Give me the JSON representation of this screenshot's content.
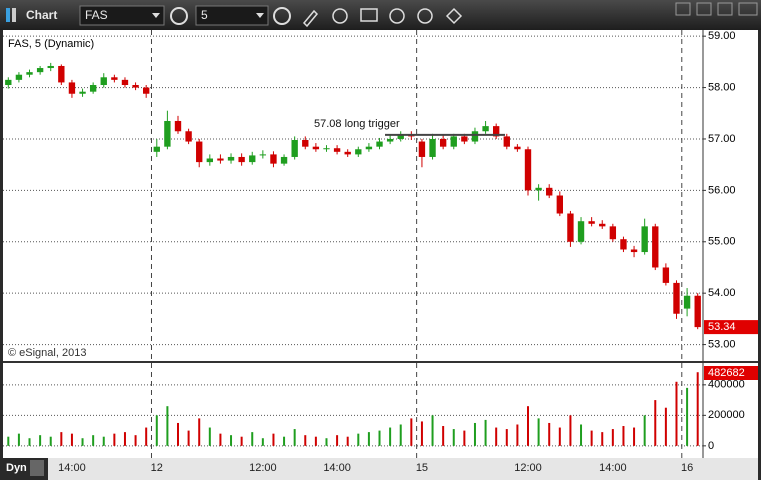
{
  "toolbar": {
    "title": "Chart",
    "symbol": "FAS",
    "interval": "5"
  },
  "footer": {
    "mode": "Dyn"
  },
  "chart_data": [
    {
      "type": "candlestick",
      "title": "FAS, 5 (Dynamic)",
      "source": "© eSignal, 2013",
      "annotation": {
        "text": "57.08 long trigger",
        "value": 57.08
      },
      "categories": [
        null,
        null,
        null,
        null,
        null,
        null,
        "14:00",
        null,
        null,
        null,
        null,
        null,
        null,
        null,
        "12",
        null,
        null,
        null,
        null,
        null,
        null,
        null,
        null,
        null,
        "12:00",
        null,
        null,
        null,
        null,
        null,
        null,
        "14:00",
        null,
        null,
        null,
        null,
        null,
        null,
        null,
        "15",
        null,
        null,
        null,
        null,
        null,
        null,
        null,
        null,
        null,
        "12:00",
        null,
        null,
        null,
        null,
        null,
        null,
        null,
        "14:00",
        null,
        null,
        null,
        null,
        null,
        null,
        "16",
        null
      ],
      "open": [
        58.05,
        58.15,
        58.25,
        58.3,
        58.38,
        58.42,
        58.1,
        57.88,
        57.92,
        58.05,
        58.2,
        58.15,
        58.05,
        58.0,
        56.75,
        56.85,
        57.35,
        57.15,
        56.95,
        56.55,
        56.62,
        56.58,
        56.65,
        56.55,
        56.68,
        56.7,
        56.52,
        56.65,
        56.98,
        56.85,
        56.8,
        56.82,
        56.75,
        56.7,
        56.8,
        56.85,
        56.95,
        57.0,
        57.08,
        56.95,
        56.65,
        57.0,
        56.85,
        57.05,
        56.95,
        57.15,
        57.25,
        57.05,
        56.85,
        56.8,
        56.0,
        56.05,
        55.9,
        55.55,
        55.0,
        55.4,
        55.35,
        55.3,
        55.05,
        54.85,
        54.8,
        55.3,
        54.5,
        54.2,
        53.7,
        53.95
      ],
      "high": [
        58.2,
        58.3,
        58.35,
        58.42,
        58.48,
        58.45,
        58.15,
        57.98,
        58.1,
        58.28,
        58.25,
        58.2,
        58.1,
        58.05,
        57.0,
        57.55,
        57.45,
        57.2,
        57.0,
        56.7,
        56.7,
        56.72,
        56.72,
        56.75,
        56.78,
        56.76,
        56.7,
        57.05,
        57.05,
        56.92,
        56.88,
        56.88,
        56.8,
        56.85,
        56.92,
        57.02,
        57.08,
        57.15,
        57.15,
        57.0,
        57.1,
        57.08,
        57.1,
        57.1,
        57.22,
        57.35,
        57.3,
        57.1,
        56.9,
        56.85,
        56.12,
        56.12,
        55.98,
        55.6,
        55.48,
        55.48,
        55.42,
        55.35,
        55.1,
        54.92,
        55.45,
        55.35,
        54.58,
        54.25,
        54.1,
        54.0
      ],
      "low": [
        57.98,
        58.1,
        58.2,
        58.25,
        58.32,
        58.05,
        57.8,
        57.82,
        57.88,
        58.0,
        58.1,
        58.0,
        57.95,
        57.8,
        56.65,
        56.8,
        57.1,
        56.9,
        56.45,
        56.48,
        56.52,
        56.52,
        56.48,
        56.5,
        56.62,
        56.45,
        56.48,
        56.6,
        56.8,
        56.75,
        56.75,
        56.7,
        56.65,
        56.65,
        56.75,
        56.8,
        56.9,
        56.95,
        56.98,
        56.45,
        56.6,
        56.8,
        56.8,
        56.9,
        56.9,
        57.1,
        57.0,
        56.8,
        56.75,
        55.9,
        55.8,
        55.85,
        55.5,
        54.9,
        54.95,
        55.3,
        55.25,
        55.0,
        54.8,
        54.7,
        54.75,
        54.45,
        54.15,
        53.5,
        53.55,
        53.3
      ],
      "close": [
        58.15,
        58.25,
        58.3,
        58.38,
        58.42,
        58.1,
        57.88,
        57.92,
        58.05,
        58.2,
        58.15,
        58.05,
        58.0,
        57.88,
        56.85,
        57.35,
        57.15,
        56.95,
        56.55,
        56.62,
        56.58,
        56.65,
        56.55,
        56.68,
        56.7,
        56.52,
        56.65,
        56.98,
        56.85,
        56.8,
        56.82,
        56.75,
        56.7,
        56.8,
        56.85,
        56.95,
        57.0,
        57.08,
        57.05,
        56.65,
        57.0,
        56.85,
        57.05,
        56.95,
        57.15,
        57.25,
        57.05,
        56.85,
        56.8,
        56.0,
        56.05,
        55.9,
        55.55,
        55.0,
        55.4,
        55.35,
        55.3,
        55.05,
        54.85,
        54.8,
        55.3,
        54.5,
        54.2,
        53.6,
        53.95,
        53.34
      ],
      "up_color": "#1f9e1f",
      "down_color": "#d00000",
      "ylim": [
        52.7,
        59.12
      ],
      "yticks": [
        {
          "value": 53,
          "label": "53.00"
        },
        {
          "value": 54,
          "label": "54.00"
        },
        {
          "value": 55,
          "label": "55.00"
        },
        {
          "value": 56,
          "label": "56.00"
        },
        {
          "value": 57,
          "label": "57.00"
        },
        {
          "value": 58,
          "label": "58.00"
        },
        {
          "value": 59,
          "label": "59.00"
        }
      ],
      "grid": true
    },
    {
      "type": "bar",
      "values": [
        60000,
        80000,
        50000,
        70000,
        60000,
        90000,
        80000,
        50000,
        70000,
        60000,
        80000,
        90000,
        70000,
        120000,
        200000,
        260000,
        150000,
        100000,
        180000,
        120000,
        80000,
        70000,
        60000,
        90000,
        50000,
        80000,
        60000,
        110000,
        70000,
        60000,
        50000,
        70000,
        60000,
        80000,
        90000,
        100000,
        120000,
        140000,
        180000,
        160000,
        200000,
        130000,
        110000,
        100000,
        150000,
        170000,
        120000,
        110000,
        140000,
        260000,
        180000,
        150000,
        120000,
        200000,
        140000,
        100000,
        90000,
        110000,
        130000,
        120000,
        200000,
        300000,
        250000,
        420000,
        380000,
        482682
      ],
      "ylim": [
        -60000,
        530000
      ],
      "yticks": [
        0,
        200000,
        400000
      ],
      "grid": true
    }
  ]
}
